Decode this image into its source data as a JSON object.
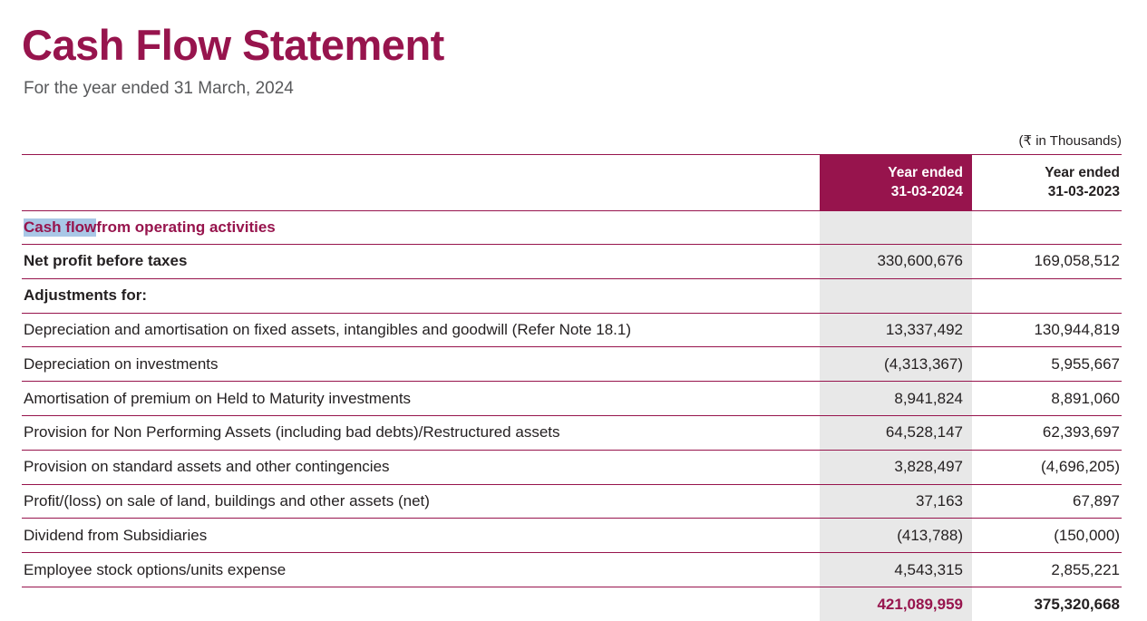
{
  "document": {
    "title": "Cash Flow Statement",
    "subtitle": "For the year ended 31 March, 2024",
    "units_note": "(₹ in Thousands)"
  },
  "table": {
    "col_2024": {
      "line1": "Year ended",
      "line2": "31-03-2024"
    },
    "col_2023": {
      "line1": "Year ended",
      "line2": "31-03-2023"
    },
    "section": {
      "highlighted_text": "Cash flow",
      "rest_text": " from operating activities"
    },
    "rows": [
      {
        "label": "Net profit before taxes",
        "v2024": "330,600,676",
        "v2023": "169,058,512"
      },
      {
        "label": "Adjustments for:",
        "v2024": "",
        "v2023": ""
      },
      {
        "label": "Depreciation and amortisation on fixed assets, intangibles and goodwill (Refer Note 18.1)",
        "v2024": "13,337,492",
        "v2023": "130,944,819"
      },
      {
        "label": "Depreciation on investments",
        "v2024": "(4,313,367)",
        "v2023": "5,955,667"
      },
      {
        "label": "Amortisation of premium on Held to Maturity investments",
        "v2024": "8,941,824",
        "v2023": "8,891,060"
      },
      {
        "label": "Provision for Non Performing Assets (including bad debts)/Restructured assets",
        "v2024": "64,528,147",
        "v2023": "62,393,697"
      },
      {
        "label": "Provision on standard assets and other contingencies",
        "v2024": "3,828,497",
        "v2023": "(4,696,205)"
      },
      {
        "label": "Profit/(loss) on sale of land, buildings and other assets (net)",
        "v2024": "37,163",
        "v2023": "67,897"
      },
      {
        "label": "Dividend from Subsidiaries",
        "v2024": "(413,788)",
        "v2023": "(150,000)"
      },
      {
        "label": "Employee stock options/units expense",
        "v2024": "4,543,315",
        "v2023": "2,855,221"
      }
    ],
    "total": {
      "v2024": "421,089,959",
      "v2023": "375,320,668"
    }
  },
  "colors": {
    "brand_maroon": "#97144D",
    "column_gray": "#e8e8e8",
    "selection_blue": "#a9c7e6"
  }
}
